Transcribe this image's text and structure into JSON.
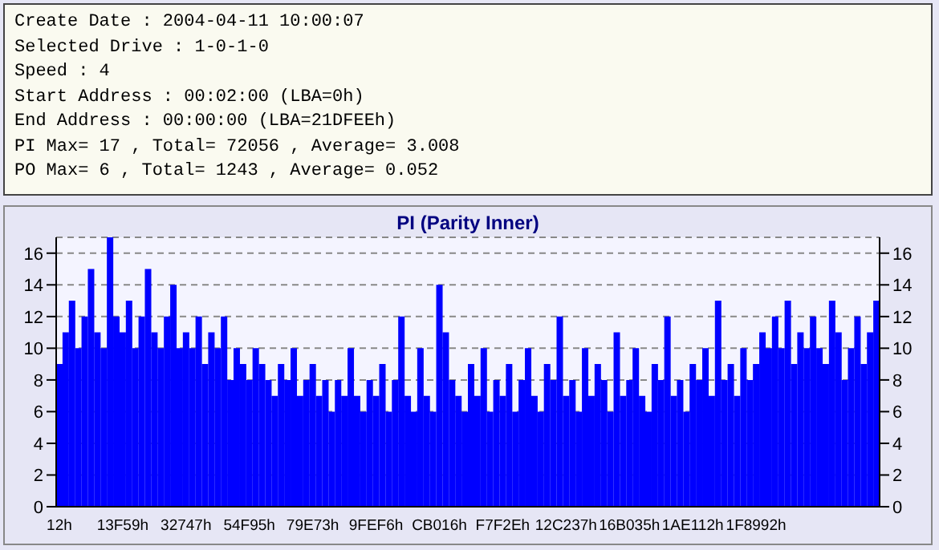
{
  "chart_data": {
    "type": "bar",
    "title": "PI (Parity Inner)",
    "annotations": [
      "Create Date : 2004-04-11 10:00:07",
      "Selected Drive : 1-0-1-0",
      "Speed : 4",
      "Start Address : 00:02:00 (LBA=0h)",
      "End Address : 00:00:00 (LBA=21DFEEh)",
      "PI Max= 17 , Total= 72056 , Average= 3.008",
      "PO Max= 6 , Total= 1243 , Average= 0.052"
    ],
    "categories": [
      "12h",
      null,
      null,
      null,
      null,
      null,
      null,
      null,
      null,
      null,
      "13F59h",
      null,
      null,
      null,
      null,
      null,
      null,
      null,
      null,
      null,
      "32747h",
      null,
      null,
      null,
      null,
      null,
      null,
      null,
      null,
      null,
      "54F95h",
      null,
      null,
      null,
      null,
      null,
      null,
      null,
      null,
      null,
      "79E73h",
      null,
      null,
      null,
      null,
      null,
      null,
      null,
      null,
      null,
      "9FEF6h",
      null,
      null,
      null,
      null,
      null,
      null,
      null,
      null,
      null,
      "CB016h",
      null,
      null,
      null,
      null,
      null,
      null,
      null,
      null,
      null,
      "F7F2Eh",
      null,
      null,
      null,
      null,
      null,
      null,
      null,
      null,
      null,
      "12C237h",
      null,
      null,
      null,
      null,
      null,
      null,
      null,
      null,
      null,
      "16B035h",
      null,
      null,
      null,
      null,
      null,
      null,
      null,
      null,
      null,
      "1AE112h",
      null,
      null,
      null,
      null,
      null,
      null,
      null,
      null,
      null,
      "1F8992h",
      null,
      null,
      null,
      null,
      null,
      null,
      null,
      null,
      null,
      null,
      null,
      null,
      null,
      null,
      null,
      null,
      null,
      null,
      null
    ],
    "values": [
      9,
      11,
      13,
      10,
      12,
      15,
      11,
      10,
      17,
      12,
      11,
      13,
      10,
      12,
      15,
      11,
      10,
      12,
      14,
      10,
      11,
      10,
      12,
      9,
      11,
      10,
      12,
      8,
      10,
      9,
      8,
      10,
      9,
      8,
      7,
      9,
      8,
      10,
      7,
      8,
      9,
      7,
      8,
      6,
      8,
      7,
      10,
      7,
      6,
      8,
      7,
      9,
      6,
      8,
      12,
      7,
      6,
      10,
      7,
      6,
      14,
      11,
      8,
      7,
      6,
      9,
      7,
      10,
      6,
      8,
      7,
      9,
      6,
      8,
      10,
      7,
      6,
      9,
      8,
      12,
      7,
      8,
      6,
      10,
      7,
      9,
      8,
      6,
      11,
      7,
      8,
      10,
      7,
      6,
      9,
      8,
      12,
      7,
      8,
      6,
      9,
      8,
      10,
      7,
      13,
      8,
      9,
      7,
      10,
      8,
      9,
      11,
      10,
      12,
      10,
      13,
      9,
      11,
      10,
      12,
      10,
      9,
      13,
      11,
      8,
      10,
      12,
      9,
      11,
      13
    ],
    "color": "#0000ff",
    "ylim": [
      0,
      17
    ],
    "yticks": [
      0,
      2,
      4,
      6,
      8,
      10,
      12,
      14,
      16
    ],
    "y2lim": [
      0,
      17
    ],
    "y2ticks": [
      0,
      2,
      4,
      6,
      8,
      10,
      12,
      14,
      16
    ],
    "grid": "y"
  }
}
